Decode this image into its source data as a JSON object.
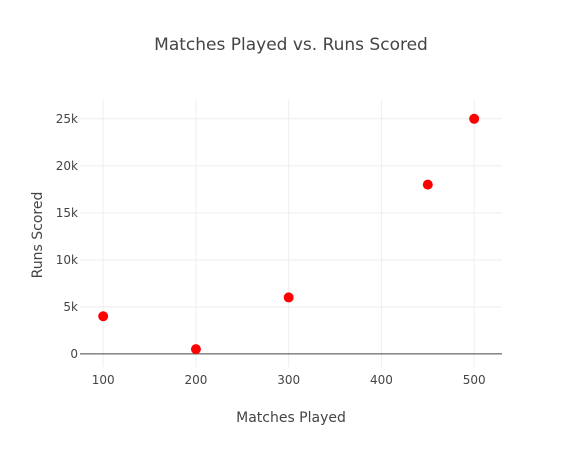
{
  "chart_data": {
    "type": "scatter",
    "title": "Matches Played vs. Runs Scored",
    "xlabel": "Matches Played",
    "ylabel": "Runs Scored",
    "x": [
      100,
      200,
      300,
      450,
      500
    ],
    "y": [
      4000,
      500,
      6000,
      18000,
      25000
    ],
    "xlim": [
      75,
      530
    ],
    "ylim": [
      -1400,
      27000
    ],
    "xticks": [
      100,
      200,
      300,
      400,
      500
    ],
    "xtick_labels": [
      "100",
      "200",
      "300",
      "400",
      "500"
    ],
    "yticks": [
      0,
      5000,
      10000,
      15000,
      20000,
      25000
    ],
    "ytick_labels": [
      "0",
      "5k",
      "10k",
      "15k",
      "20k",
      "25k"
    ],
    "grid": true,
    "legend": "none",
    "marker_color": "#ff0000",
    "grid_color": "#eeeeee",
    "text_color": "#444444"
  }
}
